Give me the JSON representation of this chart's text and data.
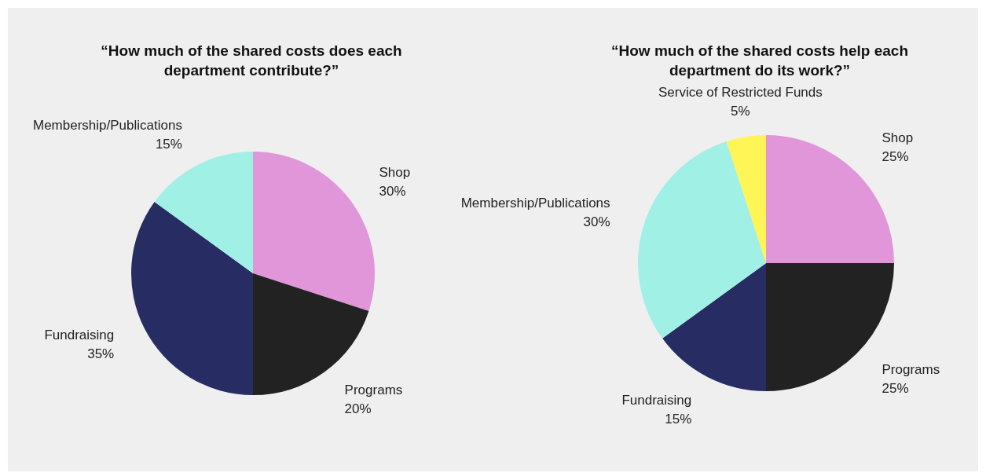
{
  "chart_data": [
    {
      "type": "pie",
      "title": "“How much of the shared costs does each department contribute?”",
      "categories": [
        "Shop",
        "Programs",
        "Fundraising",
        "Membership/Publications"
      ],
      "values": [
        30,
        20,
        35,
        15
      ],
      "value_labels": [
        "30%",
        "20%",
        "35%",
        "15%"
      ],
      "colors": [
        "#e096d8",
        "#222222",
        "#272d63",
        "#a0f0e6"
      ],
      "legend": false
    },
    {
      "type": "pie",
      "title": "“How much of the shared costs help each department do its work?”",
      "categories": [
        "Shop",
        "Programs",
        "Fundraising",
        "Membership/Publications",
        "Service of Restricted Funds"
      ],
      "values": [
        25,
        25,
        15,
        30,
        5
      ],
      "value_labels": [
        "25%",
        "25%",
        "15%",
        "30%",
        "5%"
      ],
      "colors": [
        "#e096d8",
        "#222222",
        "#272d63",
        "#a0f0e6",
        "#fff556"
      ],
      "legend": false
    }
  ]
}
